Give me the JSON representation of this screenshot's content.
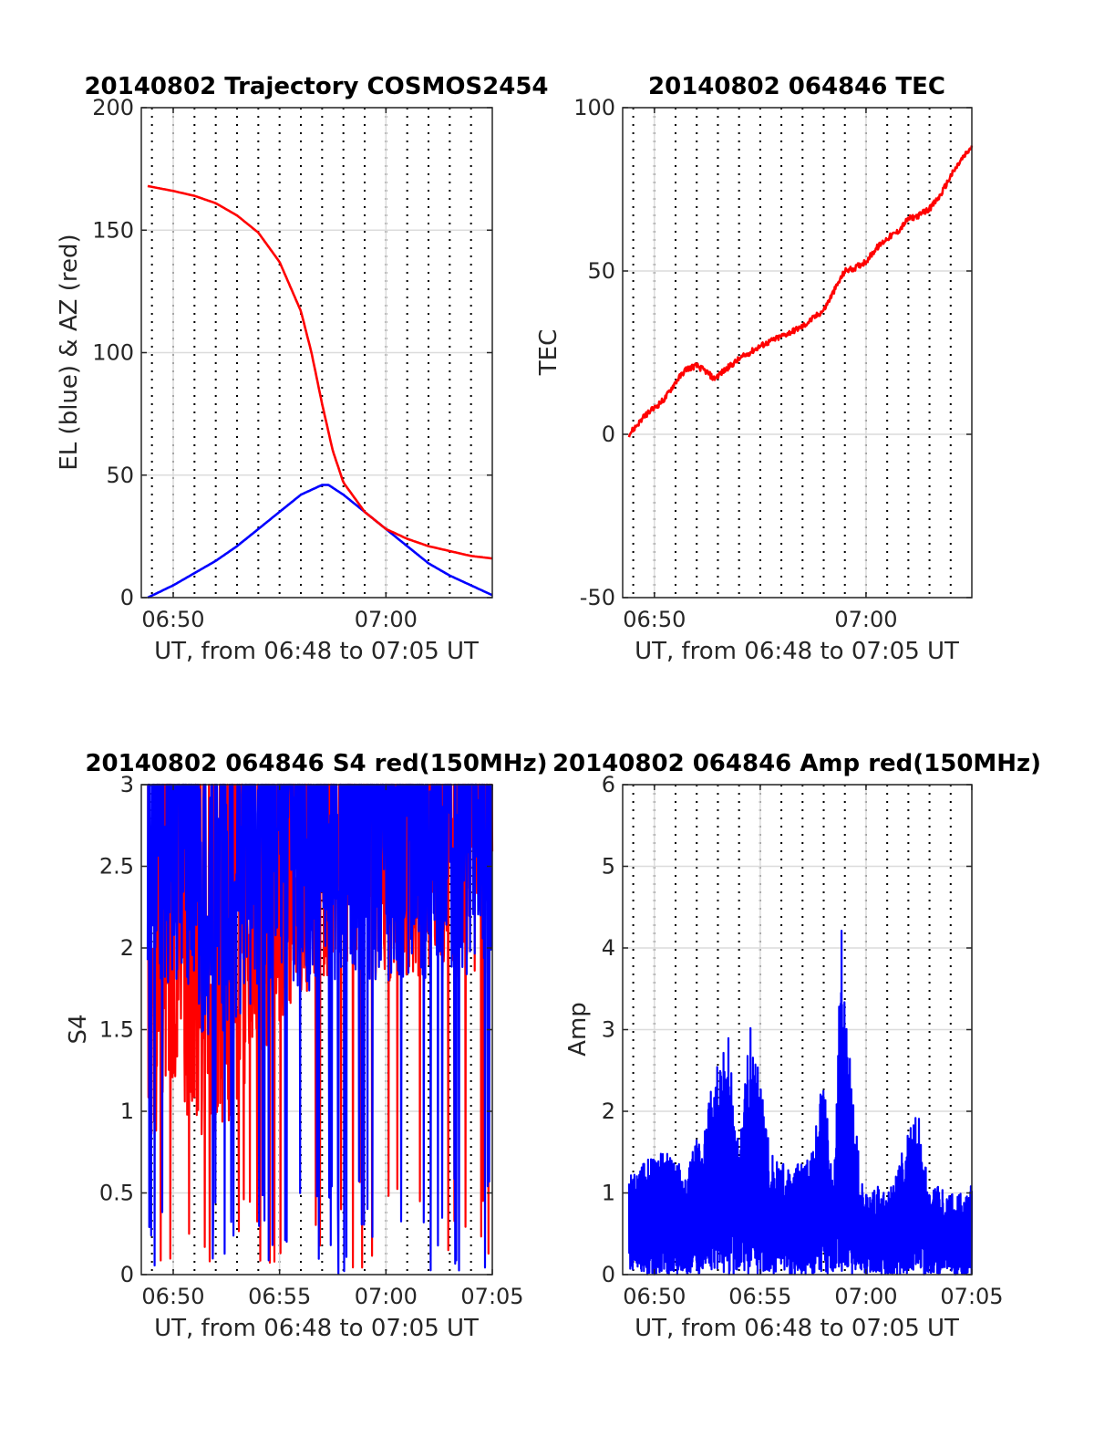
{
  "chart_data": [
    {
      "id": "traj",
      "type": "line",
      "title": "20140802 Trajectory COSMOS2454",
      "xlabel": "UT, from 06:48 to 07:05 UT",
      "ylabel": "EL (blue) & AZ (red)",
      "x_unit": "minutes after 06:48 UT",
      "xlim": [
        0.5,
        17.0
      ],
      "ylim": [
        0,
        200
      ],
      "yticks": [
        0,
        50,
        100,
        150,
        200
      ],
      "xticks": [
        {
          "value": 2,
          "label": "06:50"
        },
        {
          "value": 12,
          "label": "07:00"
        }
      ],
      "grid": true,
      "minor_dotted_every_min": 1,
      "series": [
        {
          "name": "EL",
          "color": "#0000ff",
          "x": [
            0.8,
            2,
            3,
            4,
            5,
            6,
            7,
            8,
            9,
            9.3,
            10,
            11,
            12,
            13,
            14,
            15,
            16,
            17
          ],
          "y": [
            0,
            5,
            10,
            15,
            21,
            28,
            35,
            42,
            46,
            46,
            42,
            35,
            28,
            21,
            14,
            9,
            5,
            1
          ]
        },
        {
          "name": "AZ",
          "color": "#ff0000",
          "x": [
            0.8,
            2,
            3,
            4,
            5,
            6,
            7,
            8,
            8.5,
            9,
            9.5,
            10,
            11,
            12,
            13,
            14,
            15,
            16,
            17
          ],
          "y": [
            168,
            166,
            164,
            161,
            156,
            149,
            137,
            117,
            100,
            79,
            60,
            47,
            35,
            28,
            24,
            21,
            19,
            17,
            16
          ]
        }
      ]
    },
    {
      "id": "tec",
      "type": "line",
      "title": "20140802 064846 TEC",
      "xlabel": "UT, from 06:48 to 07:05 UT",
      "ylabel": "TEC",
      "x_unit": "minutes after 06:48 UT",
      "xlim": [
        0.5,
        17.0
      ],
      "ylim": [
        -50,
        100
      ],
      "yticks": [
        -50,
        0,
        50,
        100
      ],
      "xticks": [
        {
          "value": 2,
          "label": "06:50"
        },
        {
          "value": 12,
          "label": "07:00"
        }
      ],
      "grid": true,
      "minor_dotted_every_min": 1,
      "series": [
        {
          "name": "",
          "color": "#ff0000",
          "x": [
            0.8,
            1.2,
            1.6,
            2.0,
            2.5,
            3.0,
            3.5,
            4.0,
            4.5,
            4.8,
            5.2,
            6.0,
            7.0,
            8.0,
            9.0,
            10.0,
            10.5,
            11.0,
            11.5,
            12.0,
            12.5,
            13.0,
            13.5,
            14.0,
            14.5,
            15.0,
            15.5,
            16.0,
            16.5,
            17.0
          ],
          "y": [
            0,
            3,
            6,
            8,
            11,
            16,
            20,
            21,
            19,
            17,
            19,
            23,
            27,
            30,
            33,
            38,
            44,
            50,
            51,
            53,
            57,
            60,
            62,
            66,
            67,
            69,
            73,
            79,
            84,
            88
          ]
        }
      ]
    },
    {
      "id": "s4",
      "type": "line",
      "title": "20140802 064846 S4 red(150MHz)",
      "xlabel": "UT, from 06:48 to 07:05 UT",
      "ylabel": "S4",
      "x_unit": "minutes after 06:48 UT",
      "xlim": [
        0.5,
        17.0
      ],
      "ylim": [
        0,
        3
      ],
      "yticks": [
        0,
        0.5,
        1,
        1.5,
        2,
        2.5,
        3
      ],
      "xticks": [
        {
          "value": 2,
          "label": "06:50"
        },
        {
          "value": 7,
          "label": "06:55"
        },
        {
          "value": 12,
          "label": "07:00"
        },
        {
          "value": 17,
          "label": "07:05"
        }
      ],
      "grid": true,
      "minor_dotted_every_min": 1,
      "series": [
        {
          "name": "red",
          "color": "#ff0000",
          "style": "noisy",
          "x": [
            0.8,
            1.5,
            2.5,
            3.5,
            4.5,
            5.5,
            6.5,
            7.5,
            8.5,
            9.5,
            10.5,
            11.5,
            12.5,
            13.5,
            14.5,
            15.5,
            17.0
          ],
          "y": [
            1.4,
            1.7,
            1.8,
            1.6,
            1.7,
            1.9,
            2.2,
            2.4,
            2.5,
            2.6,
            2.6,
            2.6,
            2.6,
            2.6,
            2.6,
            2.6,
            2.6
          ]
        },
        {
          "name": "blue",
          "color": "#0000ff",
          "style": "noisy",
          "x": [
            0.8,
            1.5,
            2.5,
            3.5,
            4.5,
            5.5,
            6.5,
            7.5,
            8.5,
            9.5,
            10.5,
            11.5,
            12.5,
            13.5,
            14.5,
            15.5,
            17.0
          ],
          "y": [
            2.6,
            2.6,
            2.5,
            2.2,
            2.3,
            2.4,
            2.5,
            2.6,
            2.5,
            2.6,
            2.6,
            2.6,
            2.6,
            2.6,
            2.6,
            2.6,
            2.7
          ]
        }
      ]
    },
    {
      "id": "amp",
      "type": "line",
      "title": "20140802 064846 Amp red(150MHz)",
      "xlabel": "UT, from 06:48 to 07:05 UT",
      "ylabel": "Amp",
      "x_unit": "minutes after 06:48 UT",
      "xlim": [
        0.5,
        17.0
      ],
      "ylim": [
        0,
        6
      ],
      "yticks": [
        0,
        1,
        2,
        3,
        4,
        5,
        6
      ],
      "xticks": [
        {
          "value": 2,
          "label": "06:50"
        },
        {
          "value": 7,
          "label": "06:55"
        },
        {
          "value": 12,
          "label": "07:00"
        },
        {
          "value": 17,
          "label": "07:05"
        }
      ],
      "grid": true,
      "minor_dotted_every_min": 1,
      "series": [
        {
          "name": "",
          "color": "#0000ff",
          "style": "noisy-envelope",
          "x": [
            0.8,
            1.5,
            2.5,
            3.5,
            4.5,
            5.0,
            5.5,
            6.0,
            6.5,
            7.0,
            7.5,
            8.0,
            8.5,
            9.0,
            9.5,
            10.0,
            10.3,
            10.5,
            10.8,
            11.0,
            11.5,
            12.0,
            12.5,
            13.0,
            13.5,
            14.0,
            14.5,
            15.0,
            15.5,
            16.0,
            16.5,
            17.0
          ],
          "y": [
            1.2,
            1.4,
            1.5,
            1.3,
            2.0,
            2.8,
            3.0,
            1.5,
            3.1,
            2.4,
            1.5,
            1.4,
            1.3,
            1.4,
            1.5,
            2.7,
            1.4,
            1.2,
            4.5,
            3.5,
            1.8,
            1.0,
            1.1,
            1.0,
            1.3,
            1.9,
            2.0,
            1.0,
            1.1,
            1.0,
            1.0,
            1.1
          ]
        }
      ]
    }
  ]
}
